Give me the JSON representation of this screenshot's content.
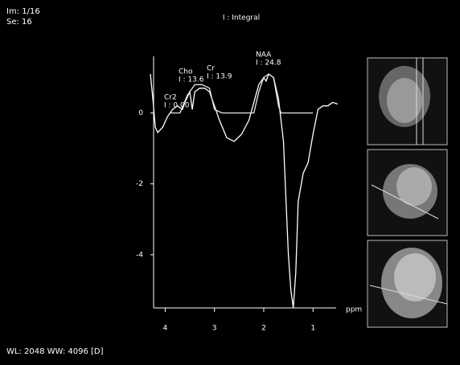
{
  "overlay": {
    "image_number": "Im: 1/16",
    "series_number": "Se: 16",
    "window": "WL: 2048 WW: 4096 [D]"
  },
  "chart_data": {
    "type": "line",
    "title": "I : Integral",
    "x_label": "ppm",
    "xlim": [
      4.3,
      0.4
    ],
    "xticks": [
      4,
      3,
      2,
      1
    ],
    "ylim": [
      -5.5,
      1.6
    ],
    "yticks": [
      0,
      -2,
      -4
    ],
    "annotations": [
      {
        "name": "Cr2",
        "integral": "I : 0.00"
      },
      {
        "name": "Cho",
        "integral": "I : 13.6"
      },
      {
        "name": "Cr",
        "integral": "I : 13.9"
      },
      {
        "name": "NAA",
        "integral": "I : 24.8"
      }
    ],
    "series": [
      {
        "color": "#ffffff",
        "x": [
          4.3,
          4.25,
          4.2,
          4.15,
          4.05,
          3.95,
          3.85,
          3.75,
          3.65,
          3.6,
          3.5,
          3.45,
          3.4,
          3.3,
          3.2,
          3.1,
          3.0,
          2.9,
          2.75,
          2.6,
          2.45,
          2.3,
          2.2,
          2.1,
          2.0,
          1.95,
          1.9,
          1.8,
          1.7,
          1.6,
          1.55,
          1.5,
          1.45,
          1.4,
          1.35,
          1.3,
          1.2,
          1.1,
          1.0,
          0.9,
          0.8,
          0.7,
          0.6,
          0.5
        ],
        "values": [
          1.1,
          0.4,
          -0.4,
          -0.55,
          -0.4,
          -0.1,
          0.1,
          0.2,
          0.1,
          0.3,
          0.6,
          0.1,
          0.6,
          0.7,
          0.7,
          0.6,
          0.2,
          -0.2,
          -0.7,
          -0.8,
          -0.6,
          -0.2,
          0.3,
          0.8,
          1.0,
          0.9,
          1.1,
          1.0,
          0.4,
          -0.8,
          -2.4,
          -4.0,
          -5.0,
          -5.5,
          -4.5,
          -2.5,
          -1.7,
          -1.4,
          -0.6,
          0.1,
          0.2,
          0.2,
          0.3,
          0.25
        ]
      },
      {
        "color": "#e8e8e8",
        "x": [
          3.9,
          3.7,
          3.55,
          3.4,
          3.25,
          3.1,
          3.0,
          2.85,
          2.2,
          2.1,
          2.0,
          1.9,
          1.8,
          1.7,
          1.65,
          1.0
        ],
        "values": [
          0,
          0,
          0.5,
          0.8,
          0.8,
          0.7,
          0.1,
          0,
          0,
          0.6,
          1.0,
          1.1,
          1.0,
          0.2,
          0,
          0
        ]
      }
    ]
  }
}
